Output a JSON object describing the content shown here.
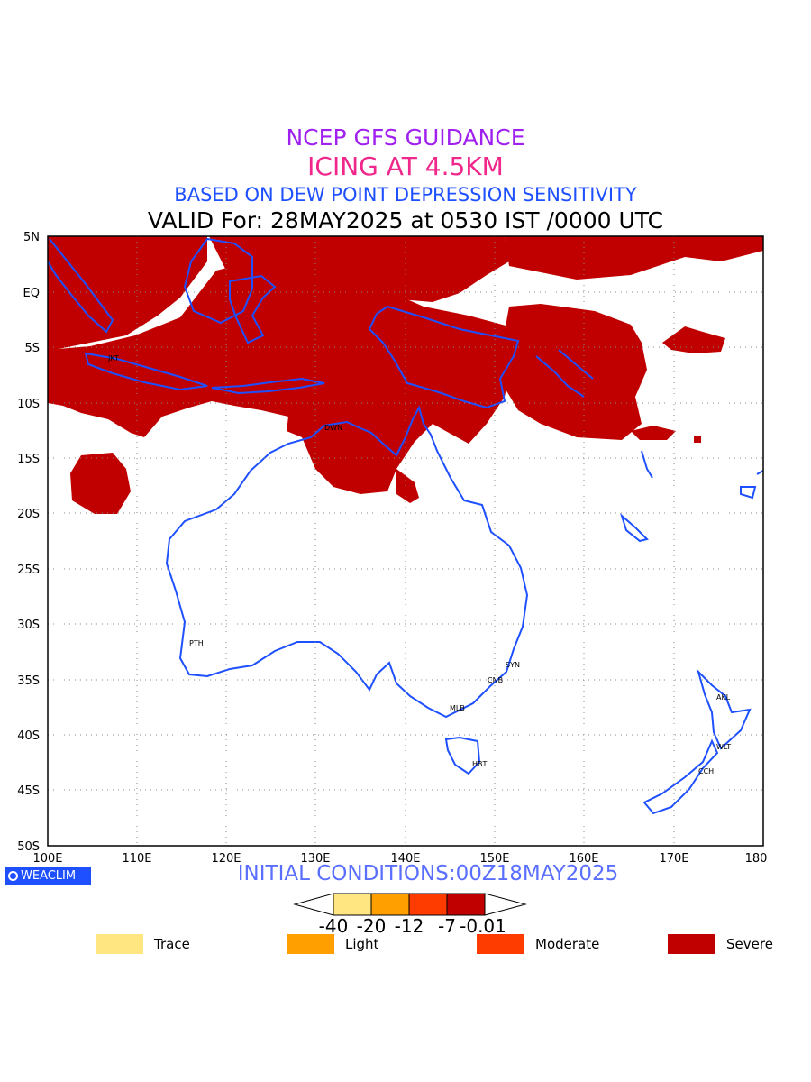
{
  "titles": {
    "line1": "NCEP GFS GUIDANCE",
    "line2": "ICING AT 4.5KM",
    "line3": "BASED ON DEW POINT DEPRESSION SENSITIVITY",
    "line4": "VALID For: 28MAY2025 at 0530 IST /0000 UTC"
  },
  "axes": {
    "lat_labels": [
      "5N",
      "EQ",
      "5S",
      "10S",
      "15S",
      "20S",
      "25S",
      "30S",
      "35S",
      "40S",
      "45S",
      "50S"
    ],
    "lon_labels": [
      "100E",
      "110E",
      "120E",
      "130E",
      "140E",
      "150E",
      "160E",
      "170E",
      "180"
    ]
  },
  "cities": [
    {
      "code": "JKT"
    },
    {
      "code": "DWN"
    },
    {
      "code": "PTH"
    },
    {
      "code": "SYN"
    },
    {
      "code": "CNB"
    },
    {
      "code": "MLB"
    },
    {
      "code": "HBT"
    },
    {
      "code": "AKL"
    },
    {
      "code": "WLT"
    },
    {
      "code": "CCH"
    }
  ],
  "logo": "WEACLIM",
  "initial_conditions": "INITIAL CONDITIONS:00Z18MAY2025",
  "colorbar": {
    "labels": [
      "-40",
      "-20",
      "-12",
      "-7",
      "-0.01"
    ],
    "colors": [
      "#ffe680",
      "#ffa000",
      "#ff3c00",
      "#c00000"
    ]
  },
  "legend": [
    {
      "label": "Trace",
      "color": "#ffe680"
    },
    {
      "label": "Light",
      "color": "#ffa000"
    },
    {
      "label": "Moderate",
      "color": "#ff3c00"
    },
    {
      "label": "Severe",
      "color": "#c00000"
    }
  ],
  "colors": {
    "coast": "#1e50ff",
    "icing": "#c00000"
  }
}
